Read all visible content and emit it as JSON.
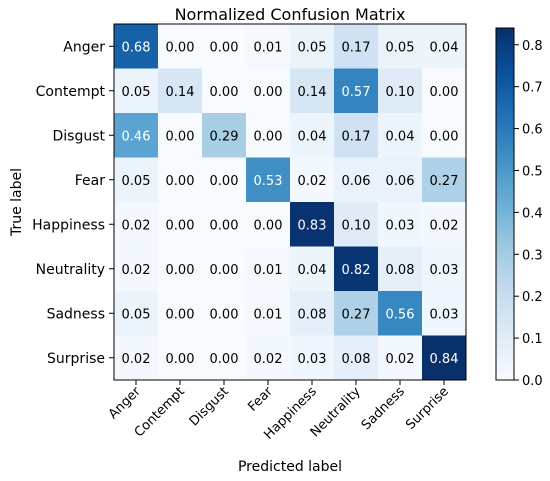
{
  "chart_data": {
    "type": "heatmap",
    "title": "Normalized Confusion Matrix",
    "xlabel": "Predicted label",
    "ylabel": "True label",
    "row_labels": [
      "Anger",
      "Contempt",
      "Disgust",
      "Fear",
      "Happiness",
      "Neutrality",
      "Sadness",
      "Surprise"
    ],
    "col_labels": [
      "Anger",
      "Contempt",
      "Disgust",
      "Fear",
      "Happiness",
      "Neutrality",
      "Sadness",
      "Surprise"
    ],
    "values": [
      [
        0.68,
        0.0,
        0.0,
        0.01,
        0.05,
        0.17,
        0.05,
        0.04
      ],
      [
        0.05,
        0.14,
        0.0,
        0.0,
        0.14,
        0.57,
        0.1,
        0.0
      ],
      [
        0.46,
        0.0,
        0.29,
        0.0,
        0.04,
        0.17,
        0.04,
        0.0
      ],
      [
        0.05,
        0.0,
        0.0,
        0.53,
        0.02,
        0.06,
        0.06,
        0.27
      ],
      [
        0.02,
        0.0,
        0.0,
        0.0,
        0.83,
        0.1,
        0.03,
        0.02
      ],
      [
        0.02,
        0.0,
        0.0,
        0.01,
        0.04,
        0.82,
        0.08,
        0.03
      ],
      [
        0.05,
        0.0,
        0.0,
        0.01,
        0.08,
        0.27,
        0.56,
        0.03
      ],
      [
        0.02,
        0.0,
        0.0,
        0.02,
        0.03,
        0.08,
        0.02,
        0.84
      ]
    ],
    "colormap": "Blues",
    "colorbar": {
      "range": [
        0.0,
        0.84
      ],
      "ticks": [
        0.0,
        0.1,
        0.2,
        0.3,
        0.4,
        0.5,
        0.6,
        0.7,
        0.8
      ],
      "tick_labels": [
        "0.0",
        "0.1",
        "0.2",
        "0.3",
        "0.4",
        "0.5",
        "0.6",
        "0.7",
        "0.8"
      ]
    },
    "text_threshold": 0.42
  }
}
